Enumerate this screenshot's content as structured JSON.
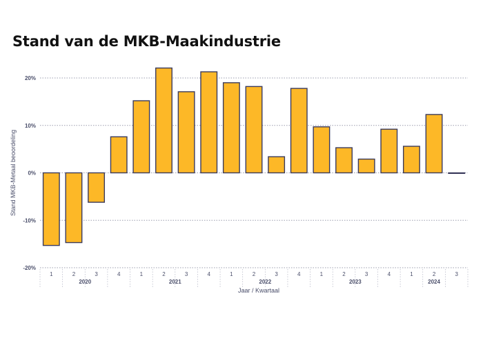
{
  "title": "Stand van de MKB-Maakindustrie",
  "chart_data": {
    "type": "bar",
    "title": "Stand van de MKB-Maakindustrie",
    "xlabel": "Jaar / Kwartaal",
    "ylabel": "Stand MKB-Metaal beoordeling",
    "ylim": [
      -0.2,
      0.2
    ],
    "yticks": [
      0.2,
      0.1,
      0,
      -0.1,
      -0.2
    ],
    "ytick_labels": [
      "20%",
      "10%",
      "0%",
      "-10%",
      "-20%"
    ],
    "grid": true,
    "bar_color": "#FDB827",
    "bar_edge_color": "#3a3a5c",
    "categories": [
      {
        "year": "2020",
        "quarter": "1"
      },
      {
        "year": "2020",
        "quarter": "2"
      },
      {
        "year": "2020",
        "quarter": "3"
      },
      {
        "year": "2020",
        "quarter": "4"
      },
      {
        "year": "2021",
        "quarter": "1"
      },
      {
        "year": "2021",
        "quarter": "2"
      },
      {
        "year": "2021",
        "quarter": "3"
      },
      {
        "year": "2021",
        "quarter": "4"
      },
      {
        "year": "2022",
        "quarter": "1"
      },
      {
        "year": "2022",
        "quarter": "2"
      },
      {
        "year": "2022",
        "quarter": "3"
      },
      {
        "year": "2022",
        "quarter": "4"
      },
      {
        "year": "2023",
        "quarter": "1"
      },
      {
        "year": "2023",
        "quarter": "2"
      },
      {
        "year": "2023",
        "quarter": "3"
      },
      {
        "year": "2023",
        "quarter": "4"
      },
      {
        "year": "2024",
        "quarter": "1"
      },
      {
        "year": "2024",
        "quarter": "2"
      },
      {
        "year": "2024",
        "quarter": "3"
      }
    ],
    "values": [
      -0.153,
      -0.147,
      -0.062,
      0.076,
      0.152,
      0.221,
      0.171,
      0.213,
      0.19,
      0.182,
      0.034,
      0.178,
      0.097,
      0.053,
      0.029,
      0.092,
      0.056,
      0.123,
      -0.001
    ],
    "year_labels": [
      "2020",
      "2021",
      "2022",
      "2023",
      "2024"
    ]
  }
}
